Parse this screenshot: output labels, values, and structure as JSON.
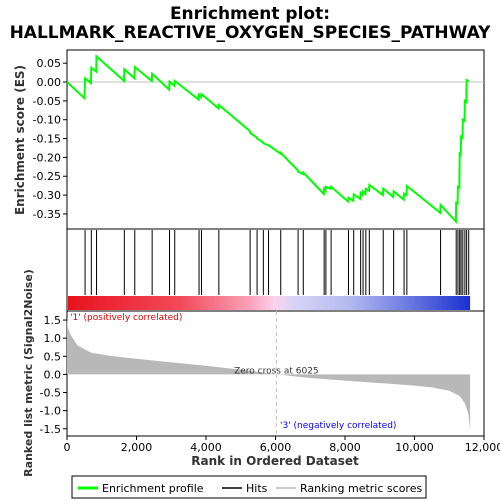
{
  "chart_data": {
    "type": "line",
    "title_line1": "Enrichment plot:",
    "title_line2": "HALLMARK_REACTIVE_OXYGEN_SPECIES_PATHWAY",
    "es_ylabel": "Enrichment score (ES)",
    "metric_ylabel": "Ranked list metric (Signal2Noise)",
    "xlabel": "Rank in Ordered Dataset",
    "xlim": [
      0,
      12000
    ],
    "x_ticks": [
      0,
      2000,
      4000,
      6000,
      8000,
      10000,
      12000
    ],
    "x_tick_labels": [
      "0",
      "2,000",
      "4,000",
      "6,000",
      "8,000",
      "10,000",
      "12,000"
    ],
    "es_ylim": [
      -0.39,
      0.085
    ],
    "es_ticks": [
      0.05,
      0.0,
      -0.05,
      -0.1,
      -0.15,
      -0.2,
      -0.25,
      -0.3,
      -0.35
    ],
    "es_tick_labels": [
      "0.05",
      "0.00",
      "-0.05",
      "-0.10",
      "-0.15",
      "-0.20",
      "-0.25",
      "-0.30",
      "-0.35"
    ],
    "metric_ylim": [
      -1.7,
      1.75
    ],
    "metric_ticks": [
      1.5,
      1.0,
      0.5,
      0.0,
      -0.5,
      -1.0,
      -1.5
    ],
    "metric_tick_labels": [
      "1.5",
      "1.0",
      "0.5",
      "0.0",
      "-0.5",
      "-1.0",
      "-1.5"
    ],
    "n_genes": 11600,
    "zero_cross": 6025,
    "zero_cross_label": "Zero cross at 6025",
    "pos_label": "'1' (positively correlated)",
    "neg_label": "'3' (negatively correlated)",
    "hits": [
      520,
      700,
      850,
      1650,
      1950,
      2450,
      2950,
      3100,
      3800,
      3870,
      4370,
      5270,
      5470,
      5650,
      5800,
      6150,
      6650,
      6800,
      7400,
      7450,
      7600,
      8100,
      8250,
      8450,
      8520,
      8600,
      8700,
      9100,
      9400,
      9700,
      9780,
      10750,
      11200,
      11250,
      11300,
      11340,
      11390,
      11450,
      11500,
      11560
    ],
    "es_curve": [
      [
        0,
        0.0
      ],
      [
        500,
        -0.043
      ],
      [
        520,
        0.01
      ],
      [
        690,
        -0.003
      ],
      [
        700,
        0.038
      ],
      [
        840,
        0.028
      ],
      [
        850,
        0.068
      ],
      [
        1640,
        0.003
      ],
      [
        1650,
        0.034
      ],
      [
        1940,
        0.01
      ],
      [
        1950,
        0.04
      ],
      [
        2440,
        0.003
      ],
      [
        2450,
        0.022
      ],
      [
        2940,
        -0.02
      ],
      [
        2950,
        0.001
      ],
      [
        3090,
        -0.01
      ],
      [
        3100,
        0.003
      ],
      [
        3790,
        -0.047
      ],
      [
        3800,
        -0.034
      ],
      [
        3860,
        -0.04
      ],
      [
        3870,
        -0.032
      ],
      [
        4360,
        -0.07
      ],
      [
        4370,
        -0.061
      ],
      [
        5260,
        -0.13
      ],
      [
        5270,
        -0.135
      ],
      [
        5460,
        -0.147
      ],
      [
        5470,
        -0.15
      ],
      [
        5640,
        -0.16
      ],
      [
        5650,
        -0.162
      ],
      [
        5790,
        -0.168
      ],
      [
        5800,
        -0.168
      ],
      [
        6140,
        -0.19
      ],
      [
        6150,
        -0.188
      ],
      [
        6640,
        -0.234
      ],
      [
        6650,
        -0.238
      ],
      [
        6790,
        -0.244
      ],
      [
        6800,
        -0.24
      ],
      [
        7390,
        -0.297
      ],
      [
        7400,
        -0.283
      ],
      [
        7440,
        -0.288
      ],
      [
        7450,
        -0.278
      ],
      [
        7590,
        -0.283
      ],
      [
        7600,
        -0.278
      ],
      [
        8090,
        -0.317
      ],
      [
        8100,
        -0.307
      ],
      [
        8240,
        -0.315
      ],
      [
        8250,
        -0.298
      ],
      [
        8440,
        -0.31
      ],
      [
        8450,
        -0.294
      ],
      [
        8510,
        -0.3
      ],
      [
        8520,
        -0.29
      ],
      [
        8590,
        -0.297
      ],
      [
        8600,
        -0.283
      ],
      [
        8690,
        -0.288
      ],
      [
        8700,
        -0.273
      ],
      [
        9090,
        -0.3
      ],
      [
        9100,
        -0.283
      ],
      [
        9390,
        -0.305
      ],
      [
        9400,
        -0.29
      ],
      [
        9690,
        -0.312
      ],
      [
        9700,
        -0.296
      ],
      [
        9770,
        -0.3
      ],
      [
        9780,
        -0.276
      ],
      [
        10740,
        -0.347
      ],
      [
        10750,
        -0.326
      ],
      [
        11190,
        -0.37
      ],
      [
        11200,
        -0.32
      ],
      [
        11240,
        -0.322
      ],
      [
        11250,
        -0.278
      ],
      [
        11290,
        -0.28
      ],
      [
        11300,
        -0.19
      ],
      [
        11330,
        -0.192
      ],
      [
        11340,
        -0.145
      ],
      [
        11380,
        -0.148
      ],
      [
        11390,
        -0.1
      ],
      [
        11440,
        -0.103
      ],
      [
        11450,
        -0.05
      ],
      [
        11490,
        -0.053
      ],
      [
        11500,
        0.005
      ],
      [
        11560,
        0.002
      ]
    ],
    "metric_curve": [
      [
        0,
        1.6
      ],
      [
        20,
        1.3
      ],
      [
        100,
        1.1
      ],
      [
        300,
        0.8
      ],
      [
        700,
        0.6
      ],
      [
        1200,
        0.52
      ],
      [
        2000,
        0.43
      ],
      [
        3000,
        0.33
      ],
      [
        4000,
        0.24
      ],
      [
        5000,
        0.13
      ],
      [
        5500,
        0.07
      ],
      [
        6025,
        0.0
      ],
      [
        7000,
        -0.1
      ],
      [
        8000,
        -0.17
      ],
      [
        9000,
        -0.24
      ],
      [
        10000,
        -0.31
      ],
      [
        10500,
        -0.36
      ],
      [
        11000,
        -0.45
      ],
      [
        11300,
        -0.6
      ],
      [
        11450,
        -0.8
      ],
      [
        11550,
        -1.1
      ],
      [
        11600,
        -1.55
      ]
    ],
    "legend": [
      "Enrichment profile",
      "Hits",
      "Ranking metric scores"
    ],
    "colors": {
      "es_line": "#00ff00",
      "hit": "#000000",
      "metric_fill": "#b8b8b8",
      "zero_line": "#c0c0c0",
      "pos_text": "#e00000",
      "neg_text": "#0000ff"
    }
  }
}
